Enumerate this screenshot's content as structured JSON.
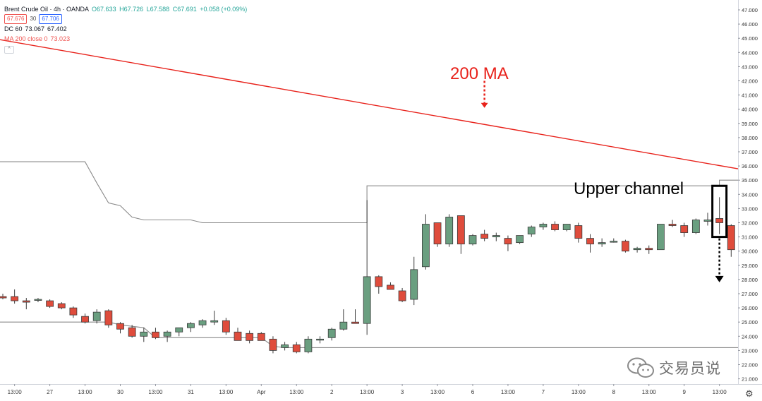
{
  "legend": {
    "symbol": "Brent Crude Oil · 4h · OANDA",
    "ohlc": {
      "o": "O67.633",
      "h": "H67.726",
      "l": "L67.588",
      "c": "C67.691",
      "chg": "+0.058 (+0.09%)"
    },
    "sell": "67.676",
    "spread": "30",
    "buy": "67.706",
    "dc": {
      "label": "DC 60",
      "v1": "73.067",
      "v2": "67.402"
    },
    "ma": {
      "label": "MA 200 close 0",
      "value": "73.023"
    }
  },
  "annotations": {
    "ma_label": "200 MA",
    "channel_label": "Upper channel"
  },
  "watermark": {
    "text": "交易员说"
  },
  "colors": {
    "up": "#6a9f80",
    "down": "#df4c3c",
    "ma": "#e8221b",
    "channel": "#8a8a8a"
  },
  "icons": {
    "settings": "gear-icon",
    "watermark": "wechat-icon",
    "arrow": "dotted-arrow-icon"
  },
  "chart_data": {
    "type": "candlestick",
    "ylim": [
      21.0,
      47.5
    ],
    "y_ticks": [
      "47.000",
      "46.000",
      "45.000",
      "44.000",
      "43.000",
      "42.000",
      "41.000",
      "40.000",
      "39.000",
      "38.000",
      "37.000",
      "36.000",
      "35.000",
      "34.000",
      "33.000",
      "32.000",
      "31.000",
      "30.000",
      "29.000",
      "28.000",
      "27.000",
      "26.000",
      "25.000",
      "24.000",
      "23.000",
      "22.000",
      "21.000"
    ],
    "x_ticks": [
      {
        "label": "13:00",
        "bar": 1
      },
      {
        "label": "27",
        "bar": 4
      },
      {
        "label": "13:00",
        "bar": 7
      },
      {
        "label": "30",
        "bar": 10
      },
      {
        "label": "13:00",
        "bar": 13
      },
      {
        "label": "31",
        "bar": 16
      },
      {
        "label": "13:00",
        "bar": 19
      },
      {
        "label": "Apr",
        "bar": 22
      },
      {
        "label": "13:00",
        "bar": 25
      },
      {
        "label": "2",
        "bar": 28
      },
      {
        "label": "13:00",
        "bar": 31
      },
      {
        "label": "3",
        "bar": 34
      },
      {
        "label": "13:00",
        "bar": 37
      },
      {
        "label": "6",
        "bar": 40
      },
      {
        "label": "13:00",
        "bar": 43
      },
      {
        "label": "7",
        "bar": 46
      },
      {
        "label": "13:00",
        "bar": 49
      },
      {
        "label": "8",
        "bar": 52
      },
      {
        "label": "13:00",
        "bar": 55
      },
      {
        "label": "9",
        "bar": 58
      },
      {
        "label": "13:00",
        "bar": 61
      }
    ],
    "candles": [
      [
        26.8,
        27.0,
        26.6,
        26.7
      ],
      [
        26.8,
        27.3,
        26.3,
        26.5
      ],
      [
        26.5,
        26.7,
        25.9,
        26.4
      ],
      [
        26.6,
        26.7,
        26.4,
        26.6
      ],
      [
        26.5,
        26.6,
        26.0,
        26.1
      ],
      [
        26.3,
        26.4,
        25.9,
        26.0
      ],
      [
        26.0,
        26.1,
        25.3,
        25.5
      ],
      [
        25.4,
        25.6,
        24.9,
        25.0
      ],
      [
        25.1,
        25.9,
        24.9,
        25.7
      ],
      [
        25.8,
        25.9,
        24.6,
        24.8
      ],
      [
        24.9,
        25.0,
        24.2,
        24.5
      ],
      [
        24.6,
        24.8,
        23.9,
        24.0
      ],
      [
        24.0,
        24.6,
        23.6,
        24.3
      ],
      [
        24.3,
        24.6,
        23.8,
        23.9
      ],
      [
        24.0,
        24.4,
        23.6,
        24.3
      ],
      [
        24.3,
        24.6,
        24.0,
        24.6
      ],
      [
        24.6,
        25.0,
        24.3,
        24.9
      ],
      [
        24.8,
        25.2,
        24.6,
        25.1
      ],
      [
        25.0,
        25.8,
        24.8,
        25.1
      ],
      [
        25.1,
        25.3,
        24.1,
        24.3
      ],
      [
        24.3,
        24.6,
        23.8,
        23.7
      ],
      [
        24.2,
        24.4,
        23.5,
        23.7
      ],
      [
        24.2,
        24.3,
        23.7,
        23.7
      ],
      [
        23.8,
        24.0,
        22.8,
        23.0
      ],
      [
        23.2,
        23.6,
        23.0,
        23.4
      ],
      [
        23.4,
        23.6,
        22.8,
        22.9
      ],
      [
        22.9,
        24.0,
        22.8,
        23.8
      ],
      [
        23.8,
        24.0,
        23.5,
        23.8
      ],
      [
        23.9,
        24.6,
        23.7,
        24.5
      ],
      [
        24.5,
        25.9,
        24.4,
        25.0
      ],
      [
        25.0,
        25.9,
        24.9,
        24.9
      ],
      [
        24.9,
        33.6,
        24.1,
        28.2
      ],
      [
        28.2,
        28.3,
        27.0,
        27.5
      ],
      [
        27.6,
        27.8,
        27.3,
        27.3
      ],
      [
        27.2,
        27.4,
        26.4,
        26.5
      ],
      [
        26.6,
        29.6,
        26.2,
        28.7
      ],
      [
        28.9,
        32.6,
        28.7,
        31.9
      ],
      [
        32.0,
        32.0,
        30.3,
        30.5
      ],
      [
        30.5,
        32.6,
        30.3,
        32.4
      ],
      [
        32.5,
        32.5,
        29.8,
        30.5
      ],
      [
        30.5,
        31.2,
        30.4,
        31.1
      ],
      [
        31.2,
        31.5,
        30.7,
        30.9
      ],
      [
        31.0,
        31.3,
        30.7,
        31.1
      ],
      [
        30.9,
        31.1,
        30.0,
        30.5
      ],
      [
        30.6,
        31.0,
        30.5,
        31.1
      ],
      [
        31.2,
        31.8,
        31.0,
        31.7
      ],
      [
        31.7,
        32.0,
        31.5,
        31.9
      ],
      [
        31.9,
        32.1,
        31.4,
        31.5
      ],
      [
        31.5,
        31.9,
        31.4,
        31.9
      ],
      [
        31.8,
        32.0,
        30.6,
        30.9
      ],
      [
        30.9,
        31.2,
        29.9,
        30.5
      ],
      [
        30.5,
        30.9,
        30.3,
        30.6
      ],
      [
        30.7,
        30.9,
        30.6,
        30.7
      ],
      [
        30.7,
        30.8,
        29.9,
        30.0
      ],
      [
        30.1,
        30.3,
        29.9,
        30.2
      ],
      [
        30.2,
        30.4,
        29.8,
        30.1
      ],
      [
        30.1,
        31.9,
        30.1,
        31.9
      ],
      [
        31.9,
        32.2,
        31.7,
        31.8
      ],
      [
        31.8,
        32.0,
        31.0,
        31.3
      ],
      [
        31.3,
        32.3,
        31.2,
        32.2
      ],
      [
        32.1,
        32.7,
        31.8,
        32.2
      ],
      [
        32.3,
        33.8,
        31.2,
        32.0
      ],
      [
        31.8,
        31.9,
        29.6,
        30.1
      ]
    ],
    "ma_200": {
      "from": [
        0,
        44.9
      ],
      "to": [
        62,
        35.8
      ]
    },
    "donchian_upper": [
      [
        0,
        36.3
      ],
      [
        7,
        36.3
      ],
      [
        8,
        34.8
      ],
      [
        9,
        33.4
      ],
      [
        10,
        33.2
      ],
      [
        11,
        32.4
      ],
      [
        12,
        32.2
      ],
      [
        16,
        32.2
      ],
      [
        17,
        32.0
      ],
      [
        31,
        32.0
      ],
      [
        31,
        34.6
      ],
      [
        61,
        34.6
      ],
      [
        61,
        35.0
      ],
      [
        62,
        35.0
      ]
    ],
    "donchian_lower": [
      [
        0,
        25.0
      ],
      [
        9,
        25.0
      ],
      [
        10,
        24.8
      ],
      [
        12,
        24.6
      ],
      [
        13,
        23.9
      ],
      [
        22,
        23.9
      ],
      [
        23,
        23.3
      ],
      [
        24,
        23.2
      ],
      [
        62,
        23.2
      ]
    ],
    "highlight_bar": 61,
    "arrow_from": 33.9,
    "arrow_to": 27.8,
    "ma_arrow": {
      "bar": 41,
      "from": 42.0,
      "to": 40.1
    }
  }
}
